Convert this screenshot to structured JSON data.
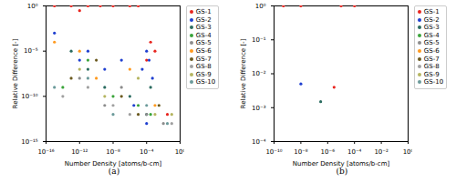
{
  "chart_data": [
    {
      "type": "scatter",
      "title": "(a)",
      "log": true,
      "grid": false,
      "legend": "upper right",
      "x_label": "Number Density [atoms/b-cm]",
      "y_label": "Relative Difference [-]",
      "xlim": [
        1e-16,
        1
      ],
      "ylim": [
        1e-15,
        1
      ],
      "xticks": [
        {
          "value": 1e-16,
          "label": "10⁻¹⁶"
        },
        {
          "value": 1e-12,
          "label": "10⁻¹²"
        },
        {
          "value": 1e-08,
          "label": "10⁻⁸"
        },
        {
          "value": 0.0001,
          "label": "10⁻⁴"
        },
        {
          "value": 1,
          "label": "10⁰"
        }
      ],
      "yticks": [
        {
          "value": 1e-15,
          "label": "10⁻¹⁵"
        },
        {
          "value": 1e-10,
          "label": "10⁻¹⁰"
        },
        {
          "value": 1e-05,
          "label": "10⁻⁵"
        },
        {
          "value": 1,
          "label": "10⁰"
        }
      ],
      "series": [
        {
          "name": "GS-1",
          "color": "#e8251f",
          "marker": "circle",
          "x": [
            1e-15,
            1e-13,
            1e-12,
            1e-11,
            3e-10,
            1e-08,
            1e-06,
            1e-05,
            0.0001,
            0.0003,
            0.001,
            0.03
          ],
          "y": [
            1,
            1,
            0.3,
            1,
            1,
            1,
            1,
            1,
            1e-06,
            0.0001,
            1e-05,
            1e-12
          ]
        },
        {
          "name": "GS-2",
          "color": "#1f3fd0",
          "marker": "circle",
          "x": [
            1e-15,
            1e-12,
            1e-11,
            1e-09,
            1e-07,
            3e-06,
            3e-05,
            0.0001,
            0.0002,
            0.0005,
            0.0001
          ],
          "y": [
            0.001,
            1e-06,
            1e-05,
            1e-07,
            1e-06,
            1e-11,
            1e-07,
            1e-05,
            1e-06,
            1e-08,
            1e-13
          ]
        },
        {
          "name": "GS-3",
          "color": "#2a6b5f",
          "marker": "circle",
          "x": [
            1e-13,
            1e-11,
            1e-09,
            1e-06,
            0.0001,
            0.0003
          ],
          "y": [
            1e-05,
            1e-07,
            1e-09,
            1e-10,
            1e-12,
            1e-09
          ]
        },
        {
          "name": "GS-4",
          "color": "#3aa43a",
          "marker": "circle",
          "x": [
            1e-14,
            1e-11,
            1e-08,
            1e-05,
            0.0003
          ],
          "y": [
            1e-09,
            1e-06,
            1e-10,
            1e-11,
            1e-12
          ]
        },
        {
          "name": "GS-5",
          "color": "#8c8c8c",
          "marker": "circle",
          "x": [
            1e-12,
            1e-09,
            1e-07,
            0.0001,
            0.01
          ],
          "y": [
            1e-08,
            1e-11,
            1e-09,
            1e-12,
            1e-13
          ]
        },
        {
          "name": "GS-6",
          "color": "#ff9a1f",
          "marker": "circle",
          "x": [
            1e-15,
            1e-12,
            1e-10,
            1e-06,
            0.001
          ],
          "y": [
            0.0001,
            1e-05,
            1e-08,
            1e-07,
            1e-11
          ]
        },
        {
          "name": "GS-7",
          "color": "#6b5a1f",
          "marker": "circle",
          "x": [
            1e-13,
            1e-10,
            1e-07,
            1e-05,
            0.003
          ],
          "y": [
            1e-08,
            1e-06,
            1e-10,
            1e-12,
            1e-11
          ]
        },
        {
          "name": "GS-8",
          "color": "#a0a0a0",
          "marker": "circle",
          "x": [
            1e-14,
            1e-11,
            1e-08,
            1e-06,
            0.1
          ],
          "y": [
            1e-10,
            1e-09,
            1e-11,
            1e-12,
            1e-13
          ]
        },
        {
          "name": "GS-9",
          "color": "#b5b560",
          "marker": "circle",
          "x": [
            1e-12,
            1e-09,
            1e-05,
            0.001,
            0.1
          ],
          "y": [
            1e-07,
            1e-10,
            1e-08,
            1e-12,
            1e-12
          ]
        },
        {
          "name": "GS-10",
          "color": "#6b9a9a",
          "marker": "circle",
          "x": [
            1e-15,
            1e-11,
            1e-08,
            0.0001,
            0.03
          ],
          "y": [
            1e-09,
            1e-08,
            1e-12,
            1e-11,
            1e-13
          ]
        }
      ]
    },
    {
      "type": "scatter",
      "title": "(b)",
      "log": true,
      "grid": false,
      "legend": "upper right",
      "x_label": "Number Density [atoms/b-cm]",
      "y_label": "Relative Difference [-]",
      "xlim": [
        1e-10,
        1
      ],
      "ylim": [
        0.0001,
        1
      ],
      "xticks": [
        {
          "value": 1e-10,
          "label": "10⁻¹⁰"
        },
        {
          "value": 1e-08,
          "label": "10⁻⁸"
        },
        {
          "value": 1e-06,
          "label": "10⁻⁶"
        },
        {
          "value": 0.0001,
          "label": "10⁻⁴"
        },
        {
          "value": 0.01,
          "label": "10⁻²"
        },
        {
          "value": 1,
          "label": "10⁰"
        }
      ],
      "yticks": [
        {
          "value": 0.0001,
          "label": "10⁻⁴"
        },
        {
          "value": 0.001,
          "label": "10⁻³"
        },
        {
          "value": 0.01,
          "label": "10⁻²"
        },
        {
          "value": 0.1,
          "label": "10⁻¹"
        },
        {
          "value": 1,
          "label": "10⁰"
        }
      ],
      "series": [
        {
          "name": "GS-1",
          "color": "#e8251f",
          "marker": "circle",
          "x": [
            5e-10,
            1e-08,
            1e-05,
            0.0001,
            3e-06
          ],
          "y": [
            1,
            1,
            1,
            1,
            0.004
          ]
        },
        {
          "name": "GS-2",
          "color": "#1f3fd0",
          "marker": "circle",
          "x": [
            1e-08
          ],
          "y": [
            0.005
          ]
        },
        {
          "name": "GS-3",
          "color": "#2a6b5f",
          "marker": "circle",
          "x": [
            3e-07
          ],
          "y": [
            0.0015
          ]
        },
        {
          "name": "GS-4",
          "color": "#3aa43a",
          "marker": "circle",
          "x": [],
          "y": []
        },
        {
          "name": "GS-5",
          "color": "#8c8c8c",
          "marker": "circle",
          "x": [],
          "y": []
        },
        {
          "name": "GS-6",
          "color": "#ff9a1f",
          "marker": "circle",
          "x": [],
          "y": []
        },
        {
          "name": "GS-7",
          "color": "#6b5a1f",
          "marker": "circle",
          "x": [],
          "y": []
        },
        {
          "name": "GS-8",
          "color": "#a0a0a0",
          "marker": "circle",
          "x": [],
          "y": []
        },
        {
          "name": "GS-9",
          "color": "#b5b560",
          "marker": "circle",
          "x": [],
          "y": []
        },
        {
          "name": "GS-10",
          "color": "#6b9a9a",
          "marker": "circle",
          "x": [],
          "y": []
        }
      ]
    }
  ]
}
